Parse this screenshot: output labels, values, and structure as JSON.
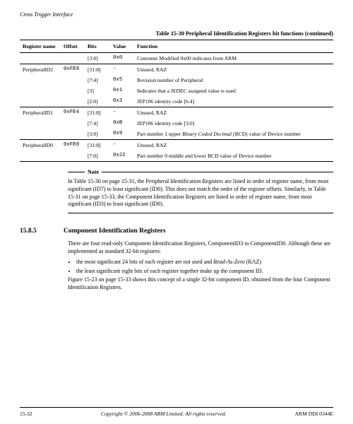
{
  "running_head": "Cross Trigger Interface",
  "table_caption": "Table 15-30 Peripheral Identification Registers bit functions (continued)",
  "columns": [
    "Register name",
    "Offset",
    "Bits",
    "Value",
    "Function"
  ],
  "rows": [
    {
      "reg": "",
      "offset": "",
      "bits": "[3:0]",
      "value": "0x0",
      "fn": "Customer Modified 0x00 indicates from ARM",
      "group_start": false
    },
    {
      "reg": "PeripheralID2",
      "offset": "0xFE8",
      "bits": "[31:8]",
      "value": "-",
      "fn": "Unused, RAZ",
      "group_start": true
    },
    {
      "reg": "",
      "offset": "",
      "bits": "[7:4]",
      "value": "0x5",
      "fn": "Revision number of Peripheral",
      "group_start": false
    },
    {
      "reg": "",
      "offset": "",
      "bits": "[3]",
      "value": "0x1",
      "fn": "Indicates that a JEDEC assigned value is used",
      "group_start": false
    },
    {
      "reg": "",
      "offset": "",
      "bits": "[2:0]",
      "value": "0x3",
      "fn": "JEP106 identity code [6:4]",
      "group_start": false
    },
    {
      "reg": "PeripheralID1",
      "offset": "0xFE4",
      "bits": "[31:8]",
      "value": "-",
      "fn": "Unused, RAZ",
      "group_start": true
    },
    {
      "reg": "",
      "offset": "",
      "bits": "[7:4]",
      "value": "0xB",
      "fn": "JEP106 identity code [3:0]",
      "group_start": false
    },
    {
      "reg": "",
      "offset": "",
      "bits": "[3:0]",
      "value": "0x9",
      "fn": "",
      "fn_html": "Part number 1 upper <span class=\"ital\">Binary Coded Decimal</span> (BCD) value of Device number",
      "group_start": false
    },
    {
      "reg": "PeripheralID0",
      "offset": "0xFE0",
      "bits": "[31:8]",
      "value": "-",
      "fn": "Unused, RAZ",
      "group_start": true
    },
    {
      "reg": "",
      "offset": "",
      "bits": "[7:0]",
      "value": "0x22",
      "fn": "Part number 0 middle and lower BCD value of Device number",
      "group_start": false
    }
  ],
  "note_label": "Note",
  "note_body": "In Table 15-30 on page 15-31, the Peripheral Identification Registers are listed in order of register name, from most significant (ID7) to least significant (ID0). This does not match the order of the register offsets. Similarly, in Table 15-31 on page 15-33, the Component Identification Registers are listed in order of register name, from most significant (ID3) to least significant (ID0).",
  "section_no": "15.8.5",
  "section_title": "Component Identification Registers",
  "para1": "There are four read-only Component Identification Registers, ComponentID3 to ComponentID0. Although these are implemented as standard 32-bit registers:",
  "bullets": [
    "the most significant 24 bits of each register are not used and <span class=\"ital\">Read-As-Zero</span> (RAZ)",
    "the least significant eight bits of each register together make up the component ID."
  ],
  "para2": "Figure 15-23 on page 15-33 shows this concept of a single 32-bit component ID, obtained from the four Component Identification Registers.",
  "footer": {
    "page": "15-32",
    "copyright": "Copyright © 2006-2008 ARM Limited. All rights reserved.",
    "docid": "ARM DDI 0344E"
  }
}
